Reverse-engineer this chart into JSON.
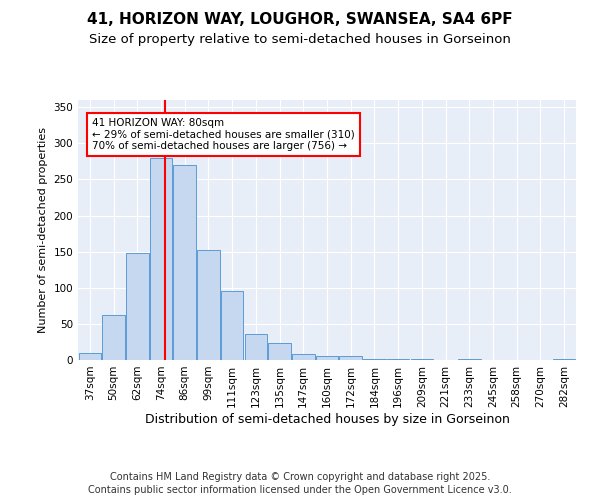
{
  "title_line1": "41, HORIZON WAY, LOUGHOR, SWANSEA, SA4 6PF",
  "title_line2": "Size of property relative to semi-detached houses in Gorseinon",
  "xlabel": "Distribution of semi-detached houses by size in Gorseinon",
  "ylabel": "Number of semi-detached properties",
  "categories": [
    "37sqm",
    "50sqm",
    "62sqm",
    "74sqm",
    "86sqm",
    "99sqm",
    "111sqm",
    "123sqm",
    "135sqm",
    "147sqm",
    "160sqm",
    "172sqm",
    "184sqm",
    "196sqm",
    "209sqm",
    "221sqm",
    "233sqm",
    "245sqm",
    "258sqm",
    "270sqm",
    "282sqm"
  ],
  "values": [
    10,
    63,
    148,
    280,
    270,
    153,
    95,
    36,
    23,
    8,
    5,
    5,
    2,
    2,
    1,
    0,
    1,
    0,
    0,
    0,
    2
  ],
  "bar_color": "#c5d8f0",
  "bar_edge_color": "#5b9bd5",
  "vline_x": 3.15,
  "vline_color": "red",
  "annotation_text": "41 HORIZON WAY: 80sqm\n← 29% of semi-detached houses are smaller (310)\n70% of semi-detached houses are larger (756) →",
  "annotation_box_color": "white",
  "annotation_box_edge": "red",
  "ylim": [
    0,
    360
  ],
  "yticks": [
    0,
    50,
    100,
    150,
    200,
    250,
    300,
    350
  ],
  "footnote_line1": "Contains HM Land Registry data © Crown copyright and database right 2025.",
  "footnote_line2": "Contains public sector information licensed under the Open Government Licence v3.0.",
  "plot_bg_color": "#e8eef8",
  "title_fontsize": 11,
  "subtitle_fontsize": 9.5,
  "tick_fontsize": 7.5,
  "ylabel_fontsize": 8,
  "xlabel_fontsize": 9,
  "footnote_fontsize": 7
}
